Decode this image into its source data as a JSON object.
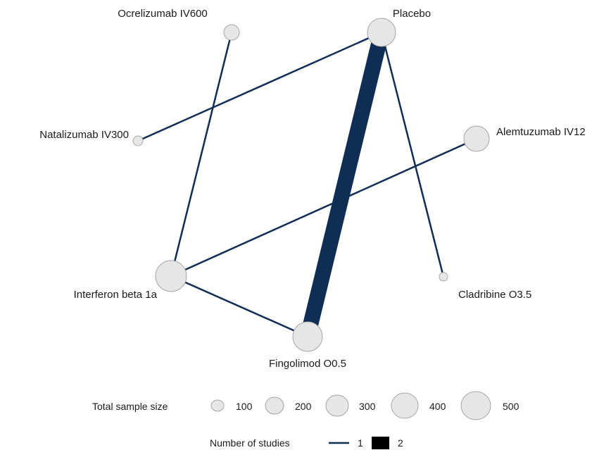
{
  "nodes": [
    {
      "id": "placebo",
      "label": "Placebo"
    },
    {
      "id": "ocrelizumab",
      "label": "Ocrelizumab IV600"
    },
    {
      "id": "natalizumab",
      "label": "Natalizumab IV300"
    },
    {
      "id": "alemtuzumab",
      "label": "Alemtuzumab IV12"
    },
    {
      "id": "interferon",
      "label": "Interferon beta 1a"
    },
    {
      "id": "cladribine",
      "label": "Cladribine O3.5"
    },
    {
      "id": "fingolimod",
      "label": "Fingolimod O0.5"
    }
  ],
  "edges": [
    {
      "from": "placebo",
      "to": "fingolimod",
      "studies": 2
    },
    {
      "from": "placebo",
      "to": "natalizumab",
      "studies": 1
    },
    {
      "from": "placebo",
      "to": "cladribine",
      "studies": 1
    },
    {
      "from": "ocrelizumab",
      "to": "interferon",
      "studies": 1
    },
    {
      "from": "alemtuzumab",
      "to": "interferon",
      "studies": 1
    },
    {
      "from": "interferon",
      "to": "fingolimod",
      "studies": 1
    }
  ],
  "legend": {
    "size_title": "Total sample size",
    "size_values": [
      "100",
      "200",
      "300",
      "400",
      "500"
    ],
    "studies_title": "Number of studies",
    "studies_values": [
      "1",
      "2"
    ]
  }
}
